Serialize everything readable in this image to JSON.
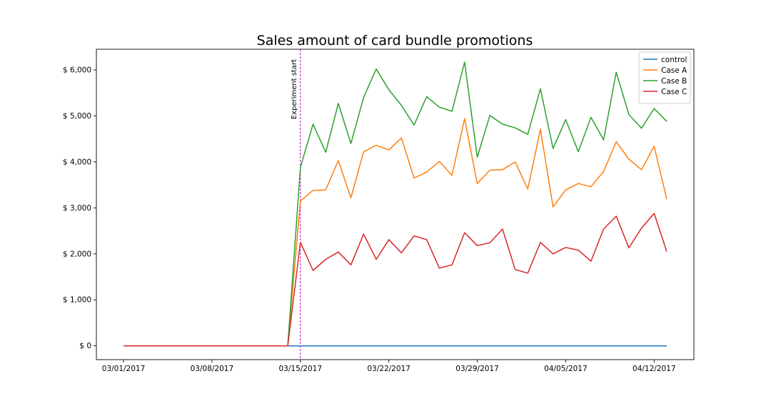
{
  "chart_data": {
    "type": "line",
    "title": "Sales amount of card bundle promotions",
    "xlabel": "",
    "ylabel": "",
    "x": [
      "03/01/2017",
      "03/02/2017",
      "03/03/2017",
      "03/04/2017",
      "03/05/2017",
      "03/06/2017",
      "03/07/2017",
      "03/08/2017",
      "03/09/2017",
      "03/10/2017",
      "03/11/2017",
      "03/12/2017",
      "03/13/2017",
      "03/14/2017",
      "03/15/2017",
      "03/16/2017",
      "03/17/2017",
      "03/18/2017",
      "03/19/2017",
      "03/20/2017",
      "03/21/2017",
      "03/22/2017",
      "03/23/2017",
      "03/24/2017",
      "03/25/2017",
      "03/26/2017",
      "03/27/2017",
      "03/28/2017",
      "03/29/2017",
      "03/30/2017",
      "03/31/2017",
      "04/01/2017",
      "04/02/2017",
      "04/03/2017",
      "04/04/2017",
      "04/05/2017",
      "04/06/2017",
      "04/07/2017",
      "04/08/2017",
      "04/09/2017",
      "04/10/2017",
      "04/11/2017",
      "04/12/2017",
      "04/13/2017"
    ],
    "x_ticks": [
      "03/01/2017",
      "03/08/2017",
      "03/15/2017",
      "03/22/2017",
      "03/29/2017",
      "04/05/2017",
      "04/12/2017"
    ],
    "y_ticks": [
      0,
      1000,
      2000,
      3000,
      4000,
      5000,
      6000
    ],
    "y_tick_labels": [
      "$ 0",
      "$ 1,000",
      "$ 2,000",
      "$ 3,000",
      "$ 4,000",
      "$ 5,000",
      "$ 6,000"
    ],
    "ylim": [
      -300,
      6450
    ],
    "grid": false,
    "legend_position": "top-right",
    "annotation": {
      "label": "Experiment start",
      "x": "03/15/2017",
      "color": "#bf00bf"
    },
    "series": [
      {
        "name": "control",
        "color": "#1f77b4",
        "values": [
          0,
          0,
          0,
          0,
          0,
          0,
          0,
          0,
          0,
          0,
          0,
          0,
          0,
          0,
          0,
          0,
          0,
          0,
          0,
          0,
          0,
          0,
          0,
          0,
          0,
          0,
          0,
          0,
          0,
          0,
          0,
          0,
          0,
          0,
          0,
          0,
          0,
          0,
          0,
          0,
          0,
          0,
          0,
          0
        ]
      },
      {
        "name": "Case A",
        "color": "#ff7f0e",
        "values": [
          0,
          0,
          0,
          0,
          0,
          0,
          0,
          0,
          0,
          0,
          0,
          0,
          0,
          0,
          3150,
          3380,
          3390,
          4030,
          3220,
          4220,
          4360,
          4260,
          4520,
          3650,
          3780,
          4010,
          3710,
          4940,
          3530,
          3820,
          3830,
          4000,
          3410,
          4710,
          3020,
          3390,
          3530,
          3460,
          3790,
          4440,
          4060,
          3830,
          4340,
          3190
        ]
      },
      {
        "name": "Case B",
        "color": "#2ca02c",
        "values": [
          0,
          0,
          0,
          0,
          0,
          0,
          0,
          0,
          0,
          0,
          0,
          0,
          0,
          0,
          3880,
          4820,
          4210,
          5270,
          4400,
          5400,
          6020,
          5570,
          5230,
          4800,
          5420,
          5190,
          5100,
          6170,
          4100,
          5010,
          4820,
          4740,
          4600,
          5590,
          4290,
          4920,
          4220,
          4970,
          4480,
          5950,
          5030,
          4730,
          5160,
          4880
        ]
      },
      {
        "name": "Case C",
        "color": "#d62728",
        "values": [
          0,
          0,
          0,
          0,
          0,
          0,
          0,
          0,
          0,
          0,
          0,
          0,
          0,
          0,
          2250,
          1640,
          1880,
          2040,
          1760,
          2430,
          1880,
          2310,
          2020,
          2390,
          2310,
          1690,
          1760,
          2460,
          2180,
          2240,
          2540,
          1660,
          1580,
          2250,
          2000,
          2140,
          2080,
          1840,
          2540,
          2820,
          2130,
          2560,
          2880,
          2050
        ]
      }
    ]
  }
}
